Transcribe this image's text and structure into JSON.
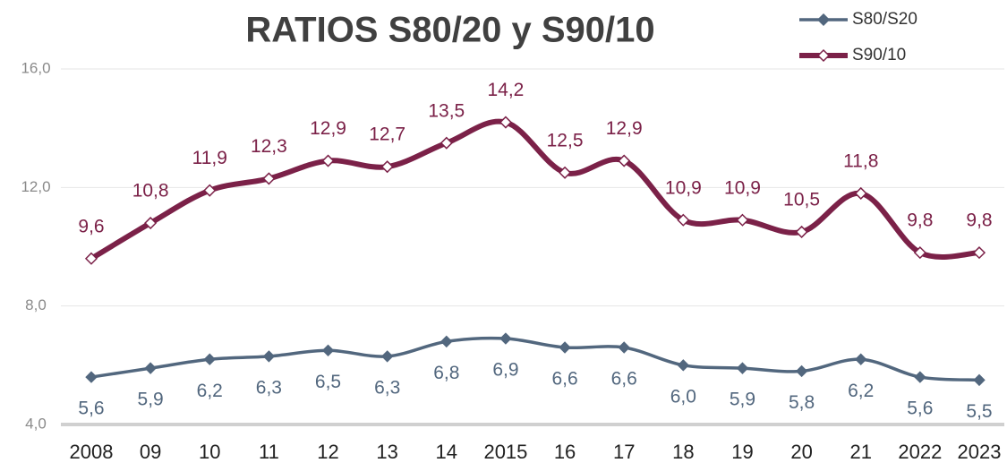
{
  "chart_data": {
    "type": "line",
    "title": "RATIOS S80/20 y S90/10",
    "categories": [
      "2008",
      "09",
      "10",
      "11",
      "12",
      "13",
      "14",
      "2015",
      "16",
      "17",
      "18",
      "19",
      "20",
      "21",
      "2022",
      "2023"
    ],
    "series": [
      {
        "name": "S80/S20",
        "color": "#52677e",
        "values": [
          5.6,
          5.9,
          6.2,
          6.3,
          6.5,
          6.3,
          6.8,
          6.9,
          6.6,
          6.6,
          6.0,
          5.9,
          5.8,
          6.2,
          5.6,
          5.5
        ],
        "value_labels": [
          "5,6",
          "5,9",
          "6,2",
          "6,3",
          "6,5",
          "6,3",
          "6,8",
          "6,9",
          "6,6",
          "6,6",
          "6,0",
          "5,9",
          "5,8",
          "6,2",
          "5,6",
          "5,5"
        ]
      },
      {
        "name": "S90/10",
        "color": "#7b2148",
        "values": [
          9.6,
          10.8,
          11.9,
          12.3,
          12.9,
          12.7,
          13.5,
          14.2,
          12.5,
          12.9,
          10.9,
          10.9,
          10.5,
          11.8,
          9.8,
          9.8
        ],
        "value_labels": [
          "9,6",
          "10,8",
          "11,9",
          "12,3",
          "12,9",
          "12,7",
          "13,5",
          "14,2",
          "12,5",
          "12,9",
          "10,9",
          "10,9",
          "10,5",
          "11,8",
          "9,8",
          "9,8"
        ]
      }
    ],
    "ylim": [
      4,
      16
    ],
    "yticks": [
      {
        "value": 4,
        "label": "4,0"
      },
      {
        "value": 8,
        "label": "8,0"
      },
      {
        "value": 12,
        "label": "12,0"
      },
      {
        "value": 16,
        "label": "16,0"
      }
    ],
    "grid": true,
    "legend": "top-right"
  }
}
